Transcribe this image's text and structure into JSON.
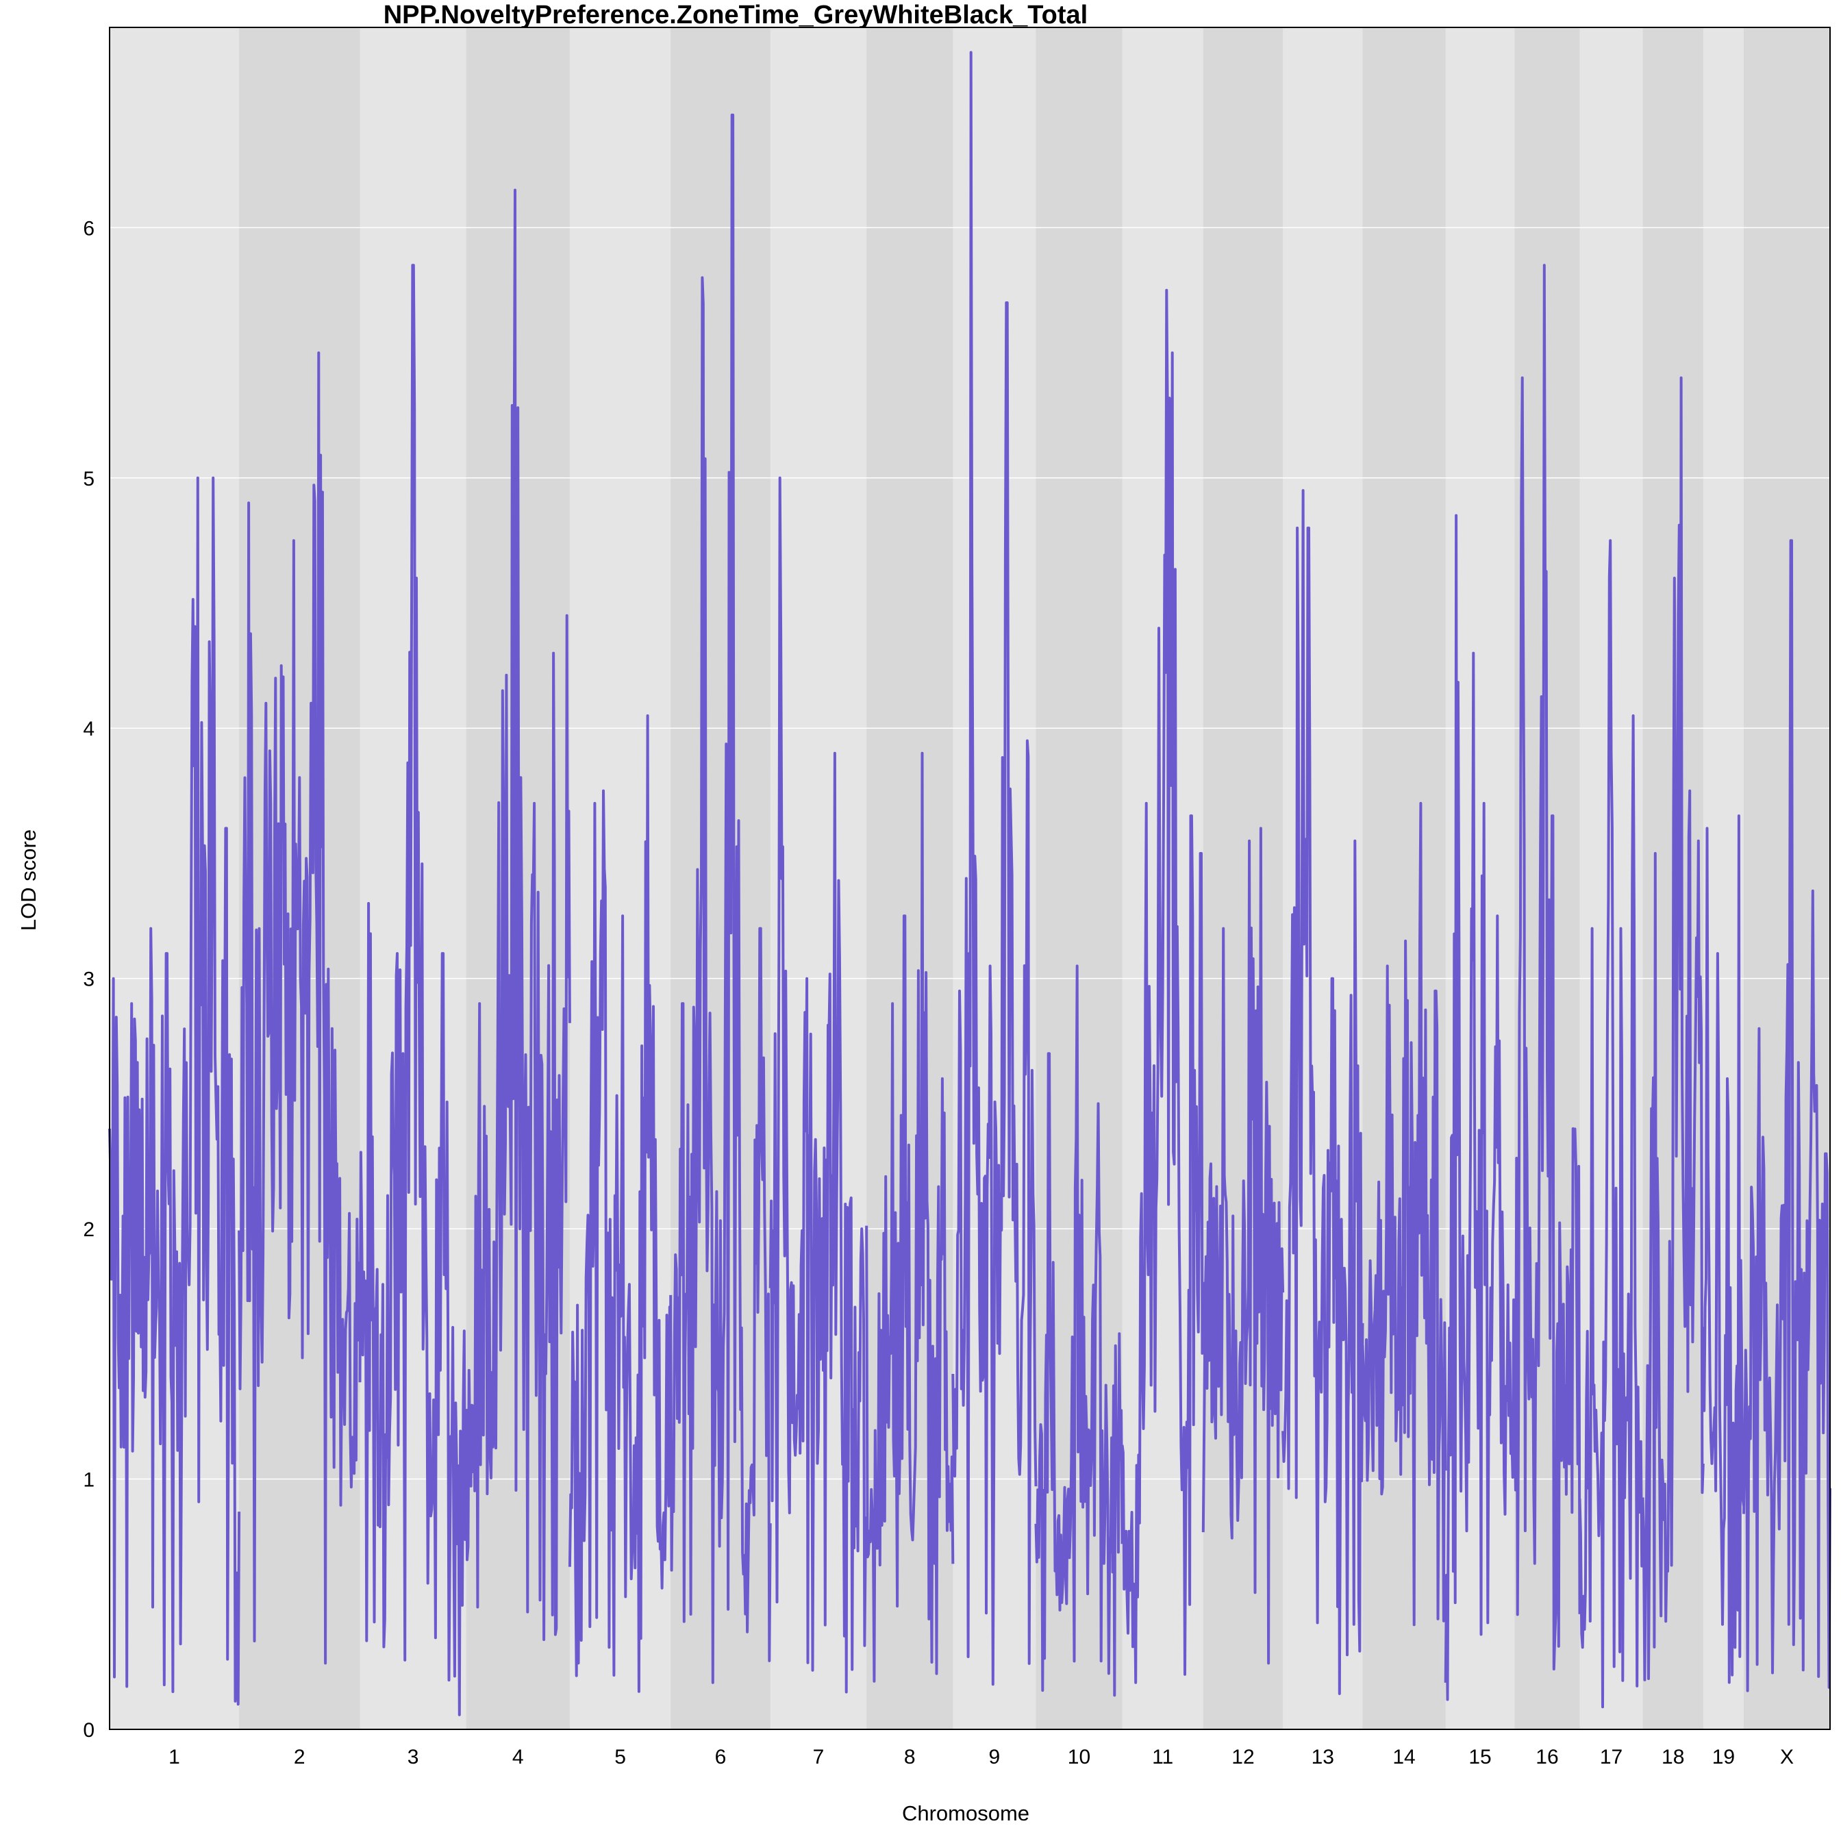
{
  "chart_data": {
    "type": "line",
    "title": "NPP.NoveltyPreference.ZoneTime_GreyWhiteBlack_Total",
    "xlabel": "Chromosome",
    "ylabel": "LOD score",
    "ylim": [
      0,
      6.8
    ],
    "yticks": [
      0,
      1,
      2,
      3,
      4,
      5,
      6
    ],
    "grid": true,
    "line_color": "#6A5ACD",
    "band_colors": [
      "#E5E5E5",
      "#D8D8D8"
    ],
    "chromosomes": [
      {
        "label": "1",
        "length": 195,
        "peaks": [
          [
            0.0,
            2.4
          ],
          [
            0.03,
            3.0
          ],
          [
            0.17,
            2.9
          ],
          [
            0.32,
            3.2
          ],
          [
            0.44,
            3.1
          ],
          [
            0.63,
            3.2
          ],
          [
            0.68,
            5.0
          ],
          [
            0.8,
            5.0
          ],
          [
            0.9,
            3.6
          ]
        ]
      },
      {
        "label": "2",
        "length": 182,
        "peaks": [
          [
            0.08,
            4.9
          ],
          [
            0.22,
            4.1
          ],
          [
            0.3,
            4.2
          ],
          [
            0.35,
            4.25
          ],
          [
            0.45,
            4.75
          ],
          [
            0.6,
            4.1
          ],
          [
            0.66,
            5.5
          ],
          [
            0.77,
            2.8
          ]
        ]
      },
      {
        "label": "3",
        "length": 160,
        "peaks": [
          [
            0.08,
            3.3
          ],
          [
            0.35,
            3.1
          ],
          [
            0.5,
            5.85
          ],
          [
            0.53,
            4.6
          ],
          [
            0.78,
            3.1
          ]
        ]
      },
      {
        "label": "4",
        "length": 156,
        "peaks": [
          [
            0.13,
            2.9
          ],
          [
            0.35,
            4.15
          ],
          [
            0.47,
            6.15
          ],
          [
            0.66,
            3.7
          ],
          [
            0.84,
            4.3
          ],
          [
            0.97,
            4.45
          ]
        ]
      },
      {
        "label": "5",
        "length": 152,
        "peaks": [
          [
            0.25,
            3.7
          ],
          [
            0.33,
            3.75
          ],
          [
            0.52,
            3.25
          ],
          [
            0.77,
            4.05
          ]
        ]
      },
      {
        "label": "6",
        "length": 150,
        "peaks": [
          [
            0.12,
            2.9
          ],
          [
            0.32,
            5.8
          ],
          [
            0.62,
            6.45
          ],
          [
            0.9,
            3.2
          ]
        ]
      },
      {
        "label": "7",
        "length": 145,
        "peaks": [
          [
            0.1,
            5.0
          ],
          [
            0.38,
            3.0
          ],
          [
            0.67,
            3.9
          ],
          [
            0.95,
            2.0
          ]
        ]
      },
      {
        "label": "8",
        "length": 130,
        "peaks": [
          [
            0.3,
            2.9
          ],
          [
            0.44,
            3.25
          ],
          [
            0.64,
            3.9
          ],
          [
            0.88,
            2.6
          ]
        ]
      },
      {
        "label": "9",
        "length": 125,
        "peaks": [
          [
            0.08,
            2.95
          ],
          [
            0.22,
            6.7
          ],
          [
            0.45,
            3.05
          ],
          [
            0.65,
            5.7
          ],
          [
            0.9,
            3.95
          ]
        ]
      },
      {
        "label": "10",
        "length": 130,
        "peaks": [
          [
            0.15,
            2.7
          ],
          [
            0.48,
            3.05
          ],
          [
            0.72,
            2.5
          ]
        ]
      },
      {
        "label": "11",
        "length": 122,
        "peaks": [
          [
            0.3,
            3.7
          ],
          [
            0.45,
            4.4
          ],
          [
            0.55,
            5.75
          ],
          [
            0.62,
            5.5
          ],
          [
            0.85,
            3.65
          ],
          [
            0.97,
            3.5
          ]
        ]
      },
      {
        "label": "12",
        "length": 120,
        "peaks": [
          [
            0.25,
            3.2
          ],
          [
            0.58,
            3.55
          ],
          [
            0.72,
            3.6
          ]
        ]
      },
      {
        "label": "13",
        "length": 120,
        "peaks": [
          [
            0.18,
            4.8
          ],
          [
            0.25,
            4.95
          ],
          [
            0.32,
            4.8
          ],
          [
            0.62,
            3.0
          ],
          [
            0.9,
            3.55
          ]
        ]
      },
      {
        "label": "14",
        "length": 125,
        "peaks": [
          [
            0.3,
            3.05
          ],
          [
            0.52,
            3.15
          ],
          [
            0.7,
            3.7
          ],
          [
            0.88,
            2.95
          ]
        ]
      },
      {
        "label": "15",
        "length": 104,
        "peaks": [
          [
            0.15,
            4.85
          ],
          [
            0.4,
            4.3
          ],
          [
            0.55,
            3.7
          ],
          [
            0.75,
            3.25
          ]
        ]
      },
      {
        "label": "16",
        "length": 98,
        "peaks": [
          [
            0.12,
            5.4
          ],
          [
            0.45,
            5.85
          ],
          [
            0.58,
            3.65
          ],
          [
            0.9,
            2.4
          ]
        ]
      },
      {
        "label": "17",
        "length": 95,
        "peaks": [
          [
            0.2,
            3.2
          ],
          [
            0.48,
            4.75
          ],
          [
            0.65,
            3.2
          ],
          [
            0.85,
            4.05
          ]
        ]
      },
      {
        "label": "18",
        "length": 91,
        "peaks": [
          [
            0.2,
            3.5
          ],
          [
            0.52,
            4.6
          ],
          [
            0.63,
            5.4
          ],
          [
            0.78,
            3.75
          ],
          [
            0.92,
            3.55
          ]
        ]
      },
      {
        "label": "19",
        "length": 61,
        "peaks": [
          [
            0.1,
            3.6
          ],
          [
            0.35,
            3.1
          ],
          [
            0.6,
            2.6
          ],
          [
            0.88,
            3.65
          ]
        ]
      },
      {
        "label": "X",
        "length": 130,
        "peaks": [
          [
            0.18,
            2.8
          ],
          [
            0.55,
            4.75
          ],
          [
            0.8,
            3.35
          ],
          [
            0.95,
            2.3
          ]
        ]
      }
    ]
  }
}
